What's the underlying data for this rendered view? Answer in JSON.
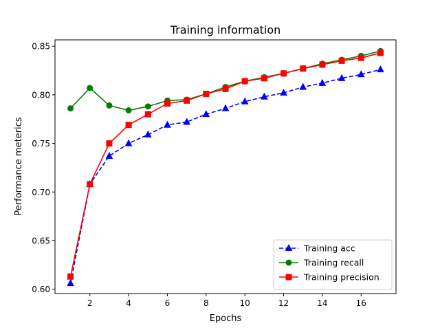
{
  "chart_data": {
    "type": "line",
    "title": "Training information",
    "xlabel": "Epochs",
    "ylabel": "Performance meterics",
    "xlim": [
      0.2,
      17.8
    ],
    "ylim": [
      0.5955,
      0.8565
    ],
    "xticks": [
      2,
      4,
      6,
      8,
      10,
      12,
      14,
      16
    ],
    "xtick_labels": [
      "2",
      "4",
      "6",
      "8",
      "10",
      "12",
      "14",
      "16"
    ],
    "yticks": [
      0.6,
      0.65,
      0.7,
      0.75,
      0.8,
      0.85
    ],
    "ytick_labels": [
      "0.60",
      "0.65",
      "0.70",
      "0.75",
      "0.80",
      "0.85"
    ],
    "grid": false,
    "legend_position": "lower-right",
    "x": [
      1,
      2,
      3,
      4,
      5,
      6,
      7,
      8,
      9,
      10,
      11,
      12,
      13,
      14,
      15,
      16,
      17
    ],
    "series": [
      {
        "name": "Training acc",
        "color": "#0000ff",
        "linestyle": "dashed",
        "marker": "triangle",
        "values": [
          0.606,
          0.708,
          0.737,
          0.75,
          0.759,
          0.769,
          0.772,
          0.78,
          0.786,
          0.793,
          0.798,
          0.802,
          0.808,
          0.812,
          0.817,
          0.821,
          0.826
        ]
      },
      {
        "name": "Training recall",
        "color": "#008000",
        "linestyle": "solid",
        "marker": "circle",
        "values": [
          0.786,
          0.807,
          0.789,
          0.784,
          0.788,
          0.794,
          0.795,
          0.801,
          0.808,
          0.814,
          0.818,
          0.822,
          0.827,
          0.832,
          0.836,
          0.84,
          0.845
        ]
      },
      {
        "name": "Training precision",
        "color": "#ff0000",
        "linestyle": "solid",
        "marker": "square",
        "values": [
          0.613,
          0.708,
          0.75,
          0.769,
          0.78,
          0.791,
          0.794,
          0.801,
          0.806,
          0.814,
          0.817,
          0.822,
          0.827,
          0.831,
          0.835,
          0.838,
          0.843
        ]
      }
    ]
  }
}
